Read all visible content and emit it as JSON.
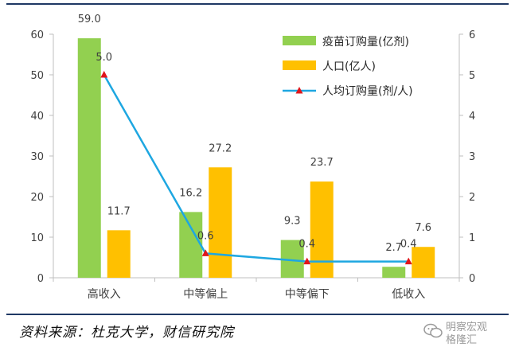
{
  "chart_data": {
    "type": "bar",
    "categories": [
      "高收入",
      "中等偏上",
      "中等偏下",
      "低收入"
    ],
    "series": [
      {
        "name": "疫苗订购量(亿剂)",
        "type": "bar",
        "axis": "left",
        "color": "#92d050",
        "values": [
          59.0,
          16.2,
          9.3,
          2.7
        ]
      },
      {
        "name": "人口(亿人)",
        "type": "bar",
        "axis": "left",
        "color": "#ffc000",
        "values": [
          11.7,
          27.2,
          23.7,
          7.6
        ]
      },
      {
        "name": "人均订购量(剂/人)",
        "type": "line",
        "axis": "right",
        "color": "#1ea7e1",
        "marker_color": "#e0161b",
        "values": [
          5.0,
          0.6,
          0.4,
          0.4
        ]
      }
    ],
    "data_labels": {
      "series0": [
        "59.0",
        "16.2",
        "9.3",
        "2.7"
      ],
      "series1": [
        "11.7",
        "27.2",
        "23.7",
        "7.6"
      ],
      "series2": [
        "5.0",
        "0.6",
        "0.4",
        "0.4"
      ]
    },
    "yleft": {
      "min": 0,
      "max": 60,
      "ticks": [
        0,
        10,
        20,
        30,
        40,
        50,
        60
      ]
    },
    "yright": {
      "min": 0,
      "max": 6,
      "ticks": [
        0,
        1,
        2,
        3,
        4,
        5,
        6
      ]
    },
    "grid": false,
    "legend_position": "top-right"
  },
  "footer": {
    "source": "资料来源：杜克大学，财信研究院",
    "watermark_line1": "明察宏观",
    "watermark_line2": "格隆汇"
  },
  "colors": {
    "rule": "#1f3864",
    "axis": "#bfbfbf",
    "text": "#404040"
  }
}
